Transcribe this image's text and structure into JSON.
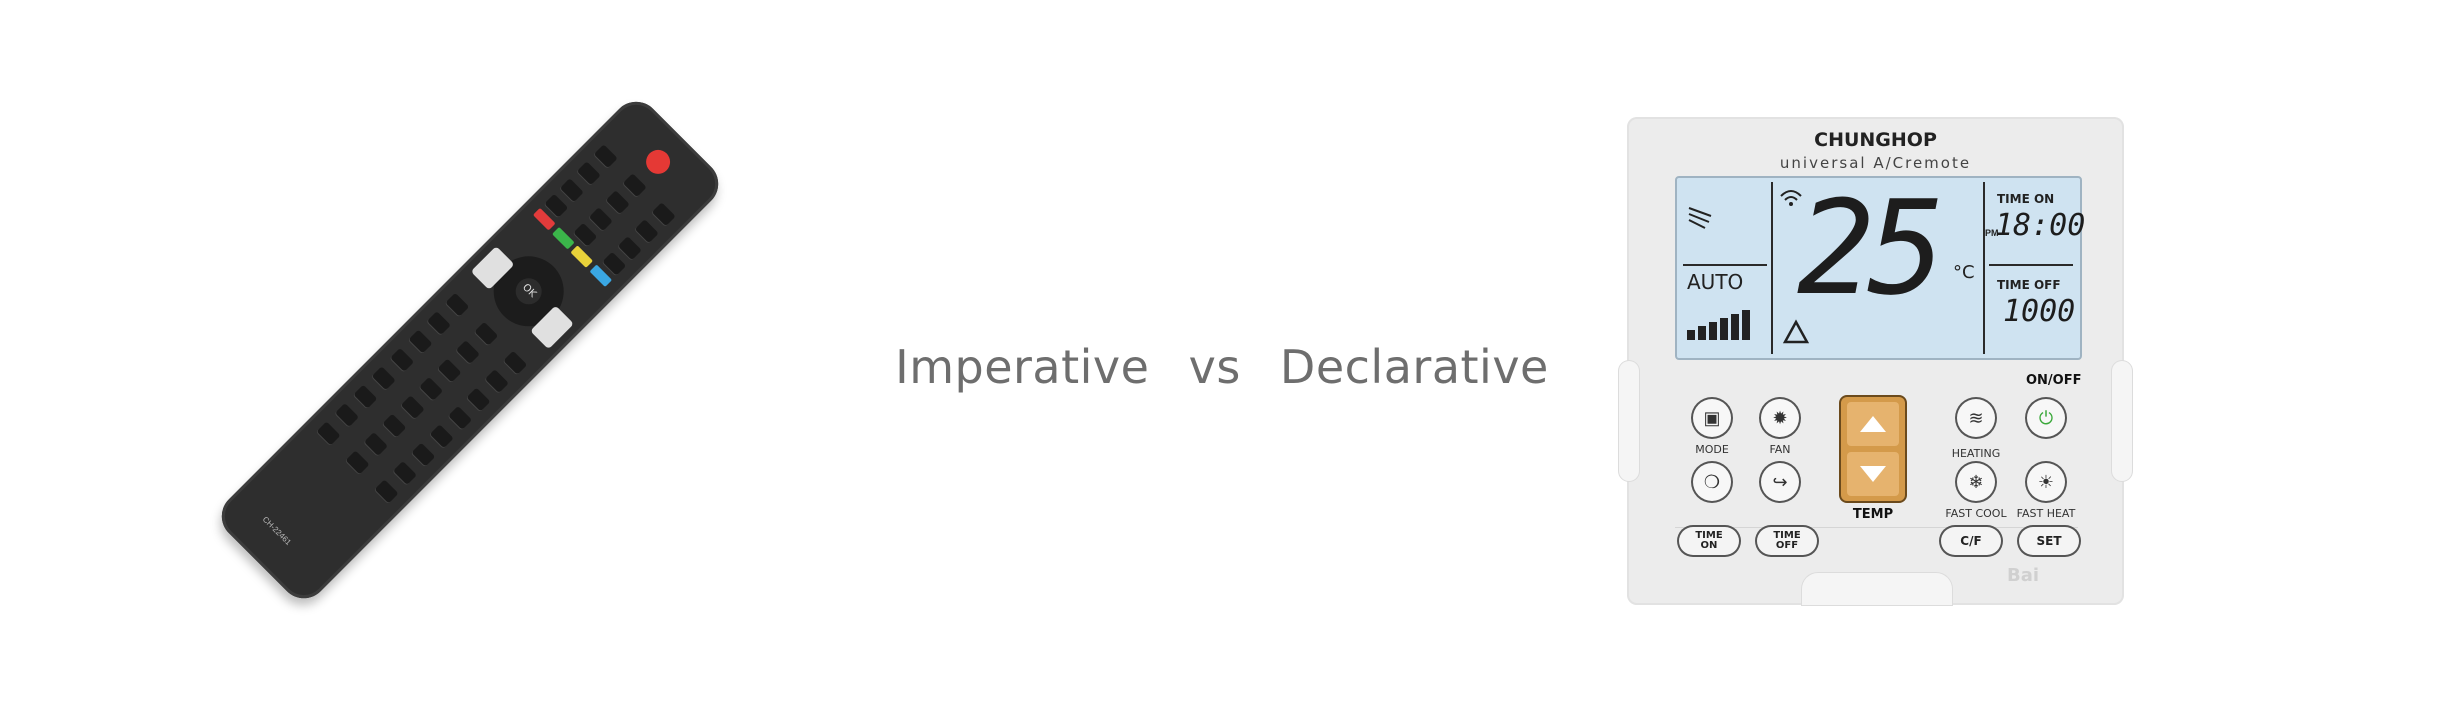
{
  "headline": {
    "left_word": "Imperative",
    "middle_word": "vs",
    "right_word": "Declarative"
  },
  "tv_remote": {
    "ok_label": "OK",
    "model_label": "CH-22461",
    "icon": "tv-remote-icon"
  },
  "ac_remote": {
    "brand": "CHUNGHOP",
    "subtitle": "universal A/Cremote",
    "display": {
      "mode": "AUTO",
      "temperature": "25",
      "unit": "°C",
      "time_on_label": "TIME ON",
      "time_on_pm": "PM",
      "time_on_value": "18:00",
      "time_off_label": "TIME OFF",
      "time_off_value": "1000"
    },
    "buttons": {
      "mode": "MODE",
      "fan": "FAN",
      "temp": "TEMP",
      "heating": "HEATING",
      "onoff": "ON/OFF",
      "fast_cool": "FAST COOL",
      "fast_heat": "FAST HEAT",
      "time_on_line1": "TIME",
      "time_on_line2": "ON",
      "time_off_line1": "TIME",
      "time_off_line2": "OFF",
      "cf": "C/F",
      "set": "SET"
    },
    "watermark": "Bai"
  }
}
